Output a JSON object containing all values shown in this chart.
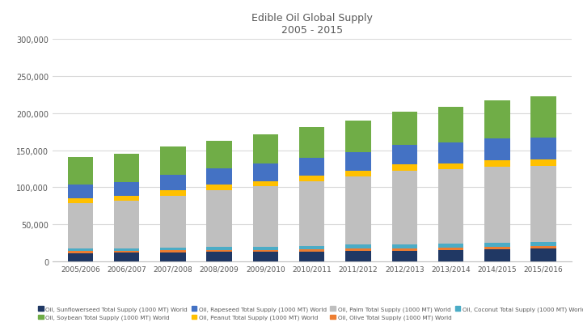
{
  "years": [
    "2005/2006",
    "2006/2007",
    "2007/2008",
    "2008/2009",
    "2009/2010",
    "2010/2011",
    "2011/2012",
    "2012/2013",
    "2013/2014",
    "2014/2015",
    "2015/2016"
  ],
  "title_line1": "Edible Oil Global Supply",
  "title_line2": "2005 - 2015",
  "series": {
    "Sunflowerseed": {
      "values": [
        11000,
        11500,
        12000,
        12500,
        12500,
        13500,
        14500,
        14500,
        15500,
        16500,
        17000
      ],
      "color": "#203864"
    },
    "Olive": {
      "values": [
        2800,
        2800,
        2800,
        2800,
        2800,
        3200,
        3200,
        3200,
        3200,
        3200,
        3200
      ],
      "color": "#ed7d31"
    },
    "Coconut": {
      "values": [
        3200,
        3500,
        3800,
        3800,
        4000,
        4200,
        4800,
        4800,
        5200,
        5200,
        5800
      ],
      "color": "#4bacc6"
    },
    "Palm": {
      "values": [
        62000,
        64000,
        70000,
        77000,
        82000,
        87000,
        92000,
        100000,
        100000,
        103000,
        103000
      ],
      "color": "#bfbfbf"
    },
    "Peanut": {
      "values": [
        6500,
        6500,
        7000,
        7000,
        7000,
        7500,
        7500,
        8000,
        8000,
        8500,
        8500
      ],
      "color": "#ffc000"
    },
    "Rapeseed": {
      "values": [
        18000,
        19000,
        21000,
        22000,
        24000,
        24000,
        25000,
        27000,
        29000,
        29000,
        30000
      ],
      "color": "#4472c4"
    },
    "Soybean": {
      "values": [
        37000,
        38000,
        38000,
        37000,
        39000,
        42000,
        43000,
        44000,
        48000,
        52000,
        55000
      ],
      "color": "#70ad47"
    },
    "Sunflowerseed_top": {
      "values": [
        11000,
        11500,
        12000,
        12500,
        12500,
        13500,
        14500,
        14500,
        15500,
        16500,
        17000
      ],
      "color": "#203864"
    }
  },
  "ylim": [
    0,
    300000
  ],
  "yticks": [
    0,
    50000,
    100000,
    150000,
    200000,
    250000,
    300000
  ],
  "ytick_labels": [
    "0",
    "50,000",
    "100,000",
    "150,000",
    "200,000",
    "250,000",
    "300,000"
  ],
  "legend_order": [
    "Sunflowerseed",
    "Soybean",
    "Rapeseed",
    "Peanut",
    "Palm",
    "Olive",
    "Coconut"
  ],
  "legend_labels": {
    "Sunflowerseed": "Oil, Sunflowerseed Total Supply (1000 MT) World",
    "Soybean": "Oil, Soybean Total Supply (1000 MT) World",
    "Rapeseed": "Oil, Rapeseed Total Supply (1000 MT) World",
    "Peanut": "Oil, Peanut Total Supply (1000 MT) World",
    "Palm": "Oil, Palm Total Supply (1000 MT) World",
    "Olive": "Oil, Olive Total Supply (1000 MT) World",
    "Coconut": "Oil, Coconut Total Supply (1000 MT) World"
  },
  "series_colors": {
    "Sunflowerseed": "#203864",
    "Olive": "#ed7d31",
    "Coconut": "#4bacc6",
    "Palm": "#bfbfbf",
    "Peanut": "#ffc000",
    "Rapeseed": "#4472c4",
    "Soybean": "#70ad47"
  },
  "stack_order": [
    "Sunflowerseed",
    "Olive",
    "Coconut",
    "Palm",
    "Peanut",
    "Rapeseed",
    "Soybean"
  ],
  "stack_values": {
    "Sunflowerseed": [
      11000,
      11500,
      12000,
      12500,
      12500,
      13500,
      14500,
      14500,
      15500,
      16500,
      17000
    ],
    "Olive": [
      2800,
      2800,
      2800,
      2800,
      2800,
      3200,
      3200,
      3200,
      3200,
      3200,
      3200
    ],
    "Coconut": [
      3200,
      3500,
      3800,
      3800,
      4000,
      4200,
      4800,
      4800,
      5200,
      5200,
      5800
    ],
    "Palm": [
      62000,
      64000,
      70000,
      77000,
      82000,
      87000,
      92000,
      100000,
      100000,
      103000,
      103000
    ],
    "Peanut": [
      6500,
      6500,
      7000,
      7000,
      7000,
      7500,
      7500,
      8000,
      8000,
      8500,
      8500
    ],
    "Rapeseed": [
      18000,
      19000,
      21000,
      22000,
      24000,
      24000,
      25000,
      27000,
      29000,
      29000,
      30000
    ],
    "Soybean": [
      37000,
      38000,
      38000,
      37000,
      39000,
      42000,
      43000,
      44000,
      48000,
      52000,
      55000
    ]
  },
  "background_color": "#ffffff",
  "grid_color": "#d9d9d9",
  "title_color": "#595959",
  "tick_color": "#595959"
}
